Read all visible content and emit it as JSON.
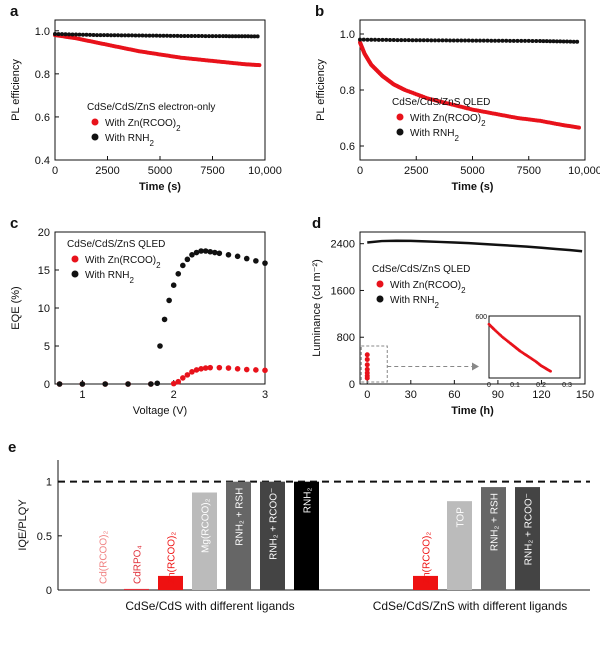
{
  "panels": {
    "a": {
      "letter": "a",
      "legend_title": "CdSe/CdS/ZnS electron-only",
      "chart_data": {
        "type": "scatter",
        "xlabel": "Time (s)",
        "ylabel": "PL efficiency",
        "xlim": [
          0,
          10000
        ],
        "ylim": [
          0.4,
          1.05
        ],
        "xticks": [
          "0",
          "2500",
          "5000",
          "7500",
          "10,000"
        ],
        "yticks": [
          "0.4",
          "0.6",
          "0.8",
          "1.0"
        ],
        "series": [
          {
            "name": "With Zn(RCOO)2",
            "color": "#e8121b",
            "x": [
              0,
              1000,
              2000,
              3000,
              4000,
              5000,
              6000,
              7000,
              8000,
              9000,
              9800
            ],
            "y": [
              0.98,
              0.965,
              0.945,
              0.925,
              0.905,
              0.89,
              0.875,
              0.865,
              0.855,
              0.845,
              0.84
            ]
          },
          {
            "name": "With RNH2",
            "color": "#111111",
            "x": [
              0,
              2000,
              4000,
              6000,
              8000,
              9800
            ],
            "y": [
              0.985,
              0.98,
              0.978,
              0.976,
              0.975,
              0.974
            ]
          }
        ]
      }
    },
    "b": {
      "letter": "b",
      "legend_title": "CdSe/CdS/ZnS QLED",
      "chart_data": {
        "type": "scatter",
        "xlabel": "Time (s)",
        "ylabel": "PL efficiency",
        "xlim": [
          0,
          10000
        ],
        "ylim": [
          0.55,
          1.05
        ],
        "xticks": [
          "0",
          "2500",
          "5000",
          "7500",
          "10,000"
        ],
        "yticks": [
          "0.6",
          "0.8",
          "1.0"
        ],
        "series": [
          {
            "name": "With Zn(RCOO)2",
            "color": "#e8121b",
            "x": [
              0,
              200,
              500,
              1000,
              1500,
              2000,
              3000,
              4000,
              5000,
              6000,
              7000,
              8000,
              9000,
              9800
            ],
            "y": [
              0.97,
              0.93,
              0.89,
              0.85,
              0.82,
              0.8,
              0.77,
              0.75,
              0.73,
              0.715,
              0.7,
              0.69,
              0.675,
              0.665
            ]
          },
          {
            "name": "With RNH2",
            "color": "#111111",
            "x": [
              0,
              2000,
              4000,
              6000,
              8000,
              9800
            ],
            "y": [
              0.98,
              0.978,
              0.977,
              0.976,
              0.975,
              0.972
            ]
          }
        ]
      }
    },
    "c": {
      "letter": "c",
      "legend_title": "CdSe/CdS/ZnS QLED",
      "chart_data": {
        "type": "scatter",
        "xlabel": "Voltage (V)",
        "ylabel": "EQE (%)",
        "xlim": [
          0.7,
          3.0
        ],
        "ylim": [
          0,
          20
        ],
        "xticks": [
          "1",
          "2",
          "3"
        ],
        "yticks": [
          "0",
          "5",
          "10",
          "15",
          "20"
        ],
        "series": [
          {
            "name": "With Zn(RCOO)2",
            "color": "#e8121b",
            "x": [
              0.75,
              1.0,
              1.25,
              1.5,
              1.75,
              2.0,
              2.05,
              2.1,
              2.15,
              2.2,
              2.25,
              2.3,
              2.35,
              2.4,
              2.5,
              2.6,
              2.7,
              2.8,
              2.9,
              3.0
            ],
            "y": [
              0,
              0,
              0,
              0,
              0,
              0.05,
              0.3,
              0.8,
              1.2,
              1.6,
              1.85,
              2.0,
              2.1,
              2.15,
              2.15,
              2.1,
              2.0,
              1.9,
              1.85,
              1.8
            ]
          },
          {
            "name": "With RNH2",
            "color": "#111111",
            "x": [
              0.75,
              1.0,
              1.25,
              1.5,
              1.75,
              1.82,
              1.85,
              1.9,
              1.95,
              2.0,
              2.05,
              2.1,
              2.15,
              2.2,
              2.25,
              2.3,
              2.35,
              2.4,
              2.45,
              2.5,
              2.6,
              2.7,
              2.8,
              2.9,
              3.0
            ],
            "y": [
              0,
              0,
              0,
              0,
              0,
              0.1,
              5.0,
              8.5,
              11.0,
              13.0,
              14.5,
              15.6,
              16.4,
              17.0,
              17.3,
              17.5,
              17.5,
              17.4,
              17.3,
              17.2,
              17.0,
              16.8,
              16.5,
              16.2,
              15.9
            ]
          }
        ]
      }
    },
    "d": {
      "letter": "d",
      "legend_title": "CdSe/CdS/ZnS QLED",
      "chart_data": {
        "type": "line",
        "xlabel": "Time (h)",
        "ylabel": "Luminance (cd m⁻²)",
        "xlim": [
          -5,
          150
        ],
        "ylim": [
          0,
          2600
        ],
        "xticks": [
          "0",
          "30",
          "60",
          "90",
          "120",
          "150"
        ],
        "yticks": [
          "0",
          "800",
          "1600",
          "2400"
        ],
        "series": [
          {
            "name": "With Zn(RCOO)2",
            "color": "#e8121b",
            "x": [
              0,
              0.05,
              0.1,
              0.15,
              0.2,
              0.25,
              0.3
            ],
            "y": [
              500,
              420,
              330,
              250,
              190,
              140,
              100
            ]
          },
          {
            "name": "With RNH2",
            "color": "#111111",
            "x": [
              0,
              10,
              20,
              30,
              40,
              50,
              60,
              70,
              80,
              90,
              100,
              110,
              120,
              130,
              140,
              148
            ],
            "y": [
              2420,
              2445,
              2450,
              2448,
              2440,
              2430,
              2420,
              2410,
              2395,
              2380,
              2365,
              2350,
              2330,
              2310,
              2290,
              2270
            ]
          }
        ],
        "inset": {
          "xlim": [
            0,
            0.35
          ],
          "ylim": [
            0,
            600
          ],
          "xticks": [
            "0",
            "0.1",
            "0.2",
            "0.3"
          ],
          "yticks": [
            "600"
          ],
          "x": [
            0.0,
            0.02,
            0.05,
            0.08,
            0.1,
            0.12,
            0.15,
            0.18,
            0.2,
            0.22,
            0.24
          ],
          "y": [
            520,
            470,
            400,
            340,
            300,
            260,
            210,
            160,
            120,
            90,
            60
          ]
        }
      }
    },
    "e": {
      "letter": "e",
      "chart_data": {
        "type": "bar",
        "ylabel": "IQE/PLQY",
        "ylim": [
          0,
          1.2
        ],
        "yticks": [
          "0",
          "0.5",
          "1"
        ],
        "reference_line": 1.0,
        "groups": [
          {
            "label": "CdSe/CdS with different ligands",
            "bars": [
              {
                "label": "Cd(RCOO)₂",
                "value": 0.0,
                "color": "#f08080"
              },
              {
                "label": "CdRPO₄",
                "value": 0.01,
                "color": "#e0303a"
              },
              {
                "label": "Zn(RCOO)₂",
                "value": 0.13,
                "color": "#ee1111"
              },
              {
                "label": "Mg(RCOO)₂",
                "value": 0.9,
                "color": "#bbbbbb"
              },
              {
                "label": "RNH₂ + RSH",
                "value": 1.0,
                "color": "#666666"
              },
              {
                "label": "RNH₂ + RCOO⁻",
                "value": 1.0,
                "color": "#444444"
              },
              {
                "label": "RNH₂",
                "value": 1.0,
                "color": "#000000"
              }
            ]
          },
          {
            "label": "CdSe/CdS/ZnS with different ligands",
            "bars": [
              {
                "label": "Zn(RCOO)₂",
                "value": 0.13,
                "color": "#ee1111"
              },
              {
                "label": "TOP",
                "value": 0.82,
                "color": "#bbbbbb"
              },
              {
                "label": "RNH₂ + RSH",
                "value": 0.95,
                "color": "#666666"
              },
              {
                "label": "RNH₂ + RCOO⁻",
                "value": 0.95,
                "color": "#444444"
              }
            ]
          }
        ]
      }
    }
  }
}
